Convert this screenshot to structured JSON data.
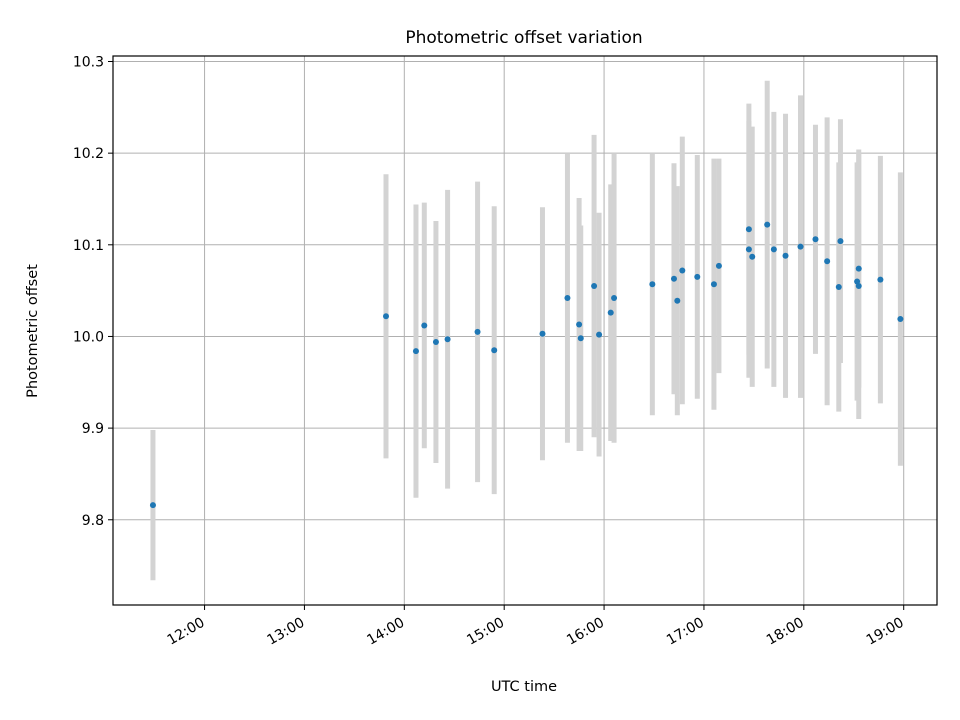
{
  "chart_data": {
    "type": "scatter",
    "title": "Photometric offset variation",
    "xlabel": "UTC time",
    "ylabel": "Photometric offset",
    "x_tick_labels": [
      "12:00",
      "13:00",
      "14:00",
      "15:00",
      "16:00",
      "17:00",
      "18:00",
      "19:00"
    ],
    "y_tick_labels": [
      "9.8",
      "9.9",
      "10.0",
      "10.1",
      "10.2",
      "10.3"
    ],
    "xlim": [
      "11:05",
      "19:20"
    ],
    "ylim": [
      9.707,
      10.306
    ],
    "grid": true,
    "error_bars": true,
    "colors": {
      "points": "#1f77b4",
      "error_bars": "#d3d3d3",
      "grid": "#b0b0b0",
      "frame": "#000000"
    },
    "points": [
      {
        "x": "11:29",
        "y": 9.816,
        "yerr": 0.082
      },
      {
        "x": "13:49",
        "y": 10.022,
        "yerr": 0.155
      },
      {
        "x": "14:07",
        "y": 9.984,
        "yerr": 0.16
      },
      {
        "x": "14:12",
        "y": 10.012,
        "yerr": 0.134
      },
      {
        "x": "14:19",
        "y": 9.994,
        "yerr": 0.132
      },
      {
        "x": "14:26",
        "y": 9.997,
        "yerr": 0.163
      },
      {
        "x": "14:44",
        "y": 10.005,
        "yerr": 0.164
      },
      {
        "x": "14:54",
        "y": 9.985,
        "yerr": 0.157
      },
      {
        "x": "15:23",
        "y": 10.003,
        "yerr": 0.138
      },
      {
        "x": "15:38",
        "y": 10.042,
        "yerr": 0.158
      },
      {
        "x": "15:45",
        "y": 10.013,
        "yerr": 0.138
      },
      {
        "x": "15:46",
        "y": 9.998,
        "yerr": 0.123
      },
      {
        "x": "15:54",
        "y": 10.055,
        "yerr": 0.165
      },
      {
        "x": "15:57",
        "y": 10.002,
        "yerr": 0.133
      },
      {
        "x": "16:04",
        "y": 10.026,
        "yerr": 0.14
      },
      {
        "x": "16:06",
        "y": 10.042,
        "yerr": 0.158
      },
      {
        "x": "16:29",
        "y": 10.057,
        "yerr": 0.143
      },
      {
        "x": "16:42",
        "y": 10.063,
        "yerr": 0.126
      },
      {
        "x": "16:44",
        "y": 10.039,
        "yerr": 0.125
      },
      {
        "x": "16:47",
        "y": 10.072,
        "yerr": 0.146
      },
      {
        "x": "16:56",
        "y": 10.065,
        "yerr": 0.133
      },
      {
        "x": "17:06",
        "y": 10.057,
        "yerr": 0.137
      },
      {
        "x": "17:09",
        "y": 10.077,
        "yerr": 0.117
      },
      {
        "x": "17:27",
        "y": 10.117,
        "yerr": 0.137
      },
      {
        "x": "17:27",
        "y": 10.095,
        "yerr": 0.14
      },
      {
        "x": "17:29",
        "y": 10.087,
        "yerr": 0.142
      },
      {
        "x": "17:38",
        "y": 10.122,
        "yerr": 0.157
      },
      {
        "x": "17:42",
        "y": 10.095,
        "yerr": 0.15
      },
      {
        "x": "17:49",
        "y": 10.088,
        "yerr": 0.155
      },
      {
        "x": "17:58",
        "y": 10.098,
        "yerr": 0.165
      },
      {
        "x": "18:07",
        "y": 10.106,
        "yerr": 0.125
      },
      {
        "x": "18:14",
        "y": 10.082,
        "yerr": 0.157
      },
      {
        "x": "18:21",
        "y": 10.054,
        "yerr": 0.136
      },
      {
        "x": "18:22",
        "y": 10.104,
        "yerr": 0.133
      },
      {
        "x": "18:32",
        "y": 10.06,
        "yerr": 0.13
      },
      {
        "x": "18:33",
        "y": 10.074,
        "yerr": 0.13
      },
      {
        "x": "18:33",
        "y": 10.055,
        "yerr": 0.145
      },
      {
        "x": "18:46",
        "y": 10.062,
        "yerr": 0.135
      },
      {
        "x": "18:58",
        "y": 10.019,
        "yerr": 0.16
      }
    ]
  }
}
